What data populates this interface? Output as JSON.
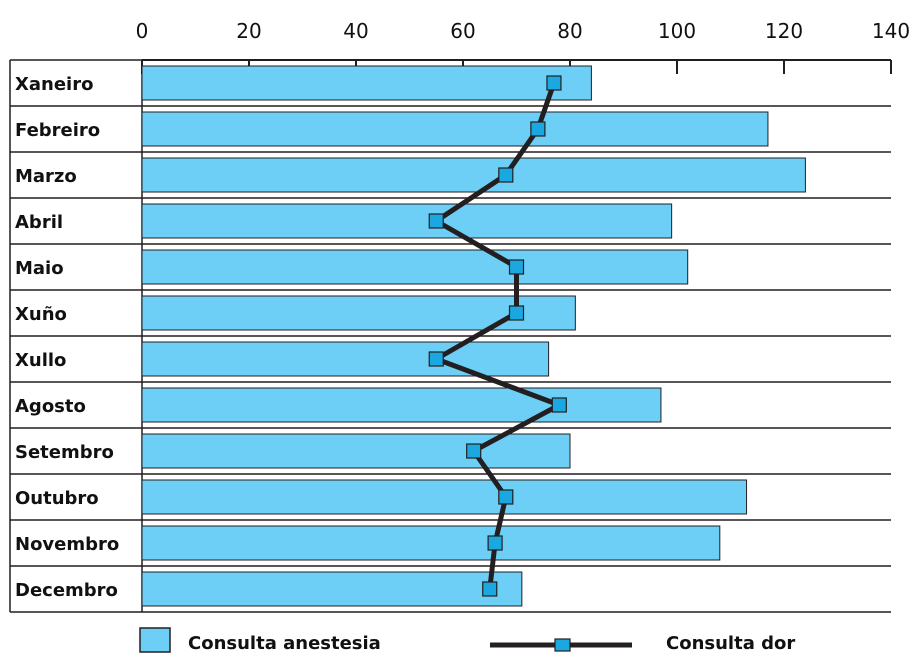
{
  "chart_data": {
    "type": "bar",
    "orientation": "horizontal",
    "categories": [
      "Xaneiro",
      "Febreiro",
      "Marzo",
      "Abril",
      "Maio",
      "Xuño",
      "Xullo",
      "Agosto",
      "Setembro",
      "Outubro",
      "Novembro",
      "Decembro"
    ],
    "series": [
      {
        "name": "Consulta anestesia",
        "type": "bar",
        "color": "#6ecff6",
        "values": [
          84,
          117,
          124,
          99,
          102,
          81,
          76,
          97,
          80,
          113,
          108,
          71
        ]
      },
      {
        "name": "Consulta dor",
        "type": "line",
        "color": "#231f20",
        "marker_color": "#1ba8e0",
        "values": [
          77,
          74,
          68,
          55,
          70,
          70,
          55,
          78,
          62,
          68,
          66,
          65
        ]
      }
    ],
    "xlim": [
      0,
      140
    ],
    "xticks": [
      "0",
      "20",
      "40",
      "60",
      "80",
      "100",
      "120",
      "140"
    ],
    "x_axis_position": "top",
    "legend": "bottom",
    "grid": false
  }
}
